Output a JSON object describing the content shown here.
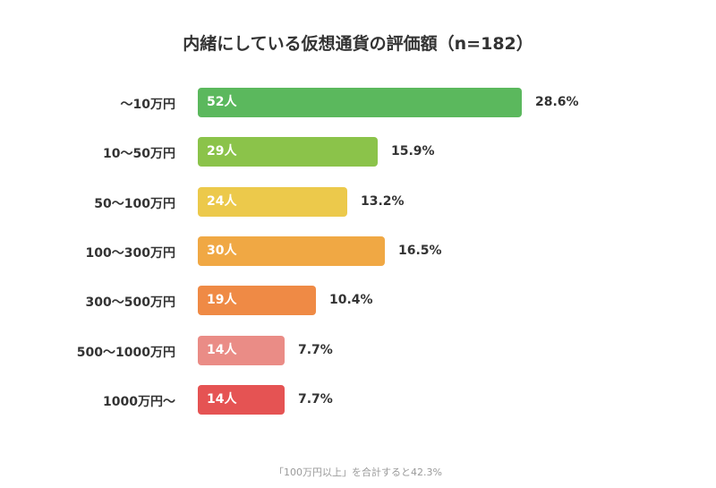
{
  "chart_data": {
    "type": "bar",
    "orientation": "horizontal",
    "title": "内緒にしている仮想通貨の評価額（n=182）",
    "categories": [
      "〜10万円",
      "10〜50万円",
      "50〜100万円",
      "100〜300万円",
      "300〜500万円",
      "500〜1000万円",
      "1000万円〜"
    ],
    "values": [
      28.6,
      15.9,
      13.2,
      16.5,
      10.4,
      7.7,
      7.7
    ],
    "value_labels": [
      "28.6%",
      "15.9%",
      "13.2%",
      "16.5%",
      "10.4%",
      "7.7%",
      "7.7%"
    ],
    "counts": [
      "52人",
      "29人",
      "24人",
      "30人",
      "19人",
      "14人",
      "14人"
    ],
    "colors": [
      "#5bb85d",
      "#8bc34a",
      "#ecc94b",
      "#f0a844",
      "#ef8a45",
      "#ea8c86",
      "#e55353"
    ],
    "xlim": [
      0,
      28.6
    ],
    "grid": false,
    "note": "「100万円以上」を合計すると42.3%"
  }
}
